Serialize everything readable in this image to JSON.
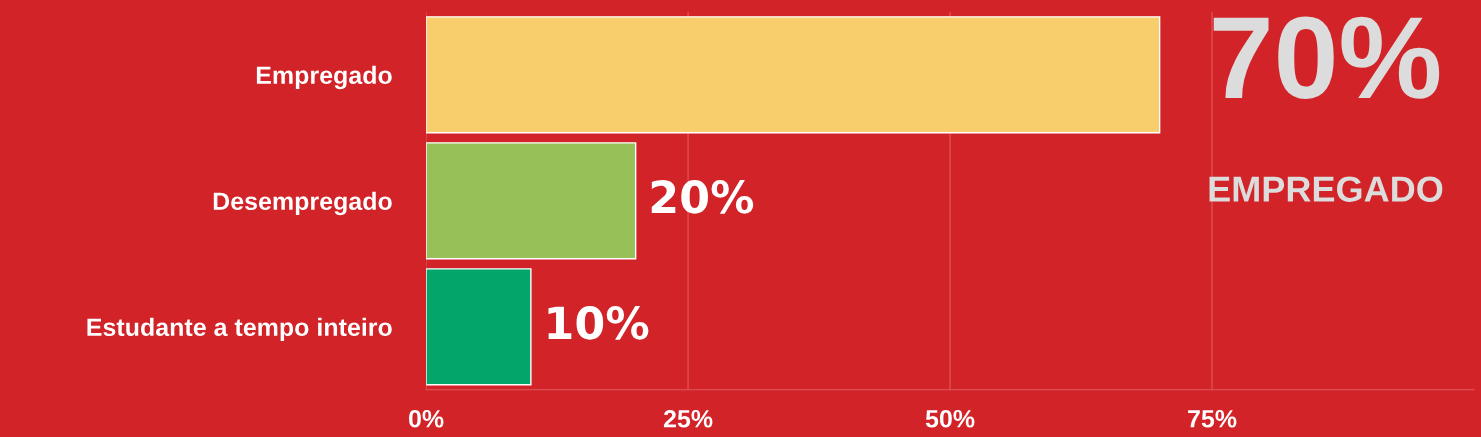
{
  "chart_data": {
    "type": "bar",
    "orientation": "horizontal",
    "categories": [
      "Empregado",
      "Desempregado",
      "Estudante a tempo inteiro"
    ],
    "values": [
      70,
      20,
      10
    ],
    "colors": [
      "#f7ce6b",
      "#97c158",
      "#02a66a"
    ],
    "value_labels": [
      null,
      "20%",
      "10%"
    ],
    "xlim": [
      0,
      100
    ],
    "xticks": [
      {
        "value": 0,
        "label": "0%"
      },
      {
        "value": 25,
        "label": "25%"
      },
      {
        "value": 50,
        "label": "50%"
      },
      {
        "value": 75,
        "label": "75%"
      }
    ],
    "grid": "x",
    "annotations": [
      "70%",
      "EMPREGADO"
    ]
  }
}
